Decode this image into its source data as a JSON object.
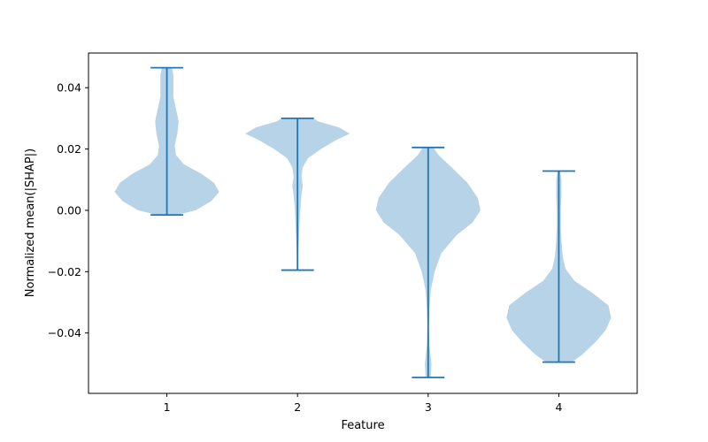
{
  "chart_data": {
    "type": "violin",
    "xlabel": "Feature",
    "ylabel": "Normalized mean(|SHAP|)",
    "xlim": [
      0.4,
      4.6
    ],
    "ylim": [
      -0.0597,
      0.0513
    ],
    "grid": false,
    "legend": "none",
    "colors": {
      "body": "#1f77b4",
      "body_opacity": 0.32,
      "line": "#1f77b4",
      "axes": "#000000"
    },
    "x_ticks": [
      {
        "value": 1,
        "label": "1"
      },
      {
        "value": 2,
        "label": "2"
      },
      {
        "value": 3,
        "label": "3"
      },
      {
        "value": 4,
        "label": "4"
      }
    ],
    "y_ticks": [
      {
        "value": -0.04,
        "label": "−0.04"
      },
      {
        "value": -0.02,
        "label": "−0.02"
      },
      {
        "value": 0.0,
        "label": "0.00"
      },
      {
        "value": 0.02,
        "label": "0.02"
      },
      {
        "value": 0.04,
        "label": "0.04"
      }
    ],
    "violins": [
      {
        "feature": 1,
        "min": -0.0015,
        "max": 0.0465,
        "profile": [
          [
            -0.0015,
            0.08
          ],
          [
            0.0,
            0.22
          ],
          [
            0.003,
            0.34
          ],
          [
            0.006,
            0.4
          ],
          [
            0.009,
            0.36
          ],
          [
            0.012,
            0.26
          ],
          [
            0.015,
            0.13
          ],
          [
            0.018,
            0.07
          ],
          [
            0.021,
            0.06
          ],
          [
            0.025,
            0.08
          ],
          [
            0.029,
            0.09
          ],
          [
            0.033,
            0.07
          ],
          [
            0.037,
            0.05
          ],
          [
            0.041,
            0.05
          ],
          [
            0.044,
            0.05
          ],
          [
            0.0465,
            0.04
          ]
        ]
      },
      {
        "feature": 2,
        "min": -0.0195,
        "max": 0.03,
        "profile": [
          [
            -0.0195,
            0.0
          ],
          [
            -0.015,
            0.005
          ],
          [
            -0.01,
            0.01
          ],
          [
            -0.005,
            0.015
          ],
          [
            0.0,
            0.02
          ],
          [
            0.005,
            0.03
          ],
          [
            0.008,
            0.04
          ],
          [
            0.011,
            0.03
          ],
          [
            0.014,
            0.04
          ],
          [
            0.017,
            0.08
          ],
          [
            0.02,
            0.18
          ],
          [
            0.023,
            0.3
          ],
          [
            0.025,
            0.4
          ],
          [
            0.027,
            0.32
          ],
          [
            0.029,
            0.16
          ],
          [
            0.03,
            0.12
          ]
        ]
      },
      {
        "feature": 3,
        "min": -0.0545,
        "max": 0.0205,
        "profile": [
          [
            -0.0545,
            0.02
          ],
          [
            -0.05,
            0.025
          ],
          [
            -0.044,
            0.01
          ],
          [
            -0.038,
            0.005
          ],
          [
            -0.032,
            0.01
          ],
          [
            -0.026,
            0.02
          ],
          [
            -0.02,
            0.05
          ],
          [
            -0.014,
            0.1
          ],
          [
            -0.008,
            0.22
          ],
          [
            -0.004,
            0.34
          ],
          [
            0.0,
            0.4
          ],
          [
            0.004,
            0.38
          ],
          [
            0.009,
            0.3
          ],
          [
            0.014,
            0.18
          ],
          [
            0.018,
            0.08
          ],
          [
            0.0205,
            0.04
          ]
        ]
      },
      {
        "feature": 4,
        "min": -0.0495,
        "max": 0.0128,
        "profile": [
          [
            -0.0495,
            0.1
          ],
          [
            -0.047,
            0.18
          ],
          [
            -0.043,
            0.28
          ],
          [
            -0.039,
            0.36
          ],
          [
            -0.035,
            0.4
          ],
          [
            -0.031,
            0.38
          ],
          [
            -0.027,
            0.26
          ],
          [
            -0.023,
            0.12
          ],
          [
            -0.019,
            0.05
          ],
          [
            -0.015,
            0.03
          ],
          [
            -0.01,
            0.02
          ],
          [
            -0.005,
            0.015
          ],
          [
            0.0,
            0.015
          ],
          [
            0.005,
            0.02
          ],
          [
            0.01,
            0.02
          ],
          [
            0.0128,
            0.01
          ]
        ]
      }
    ]
  }
}
